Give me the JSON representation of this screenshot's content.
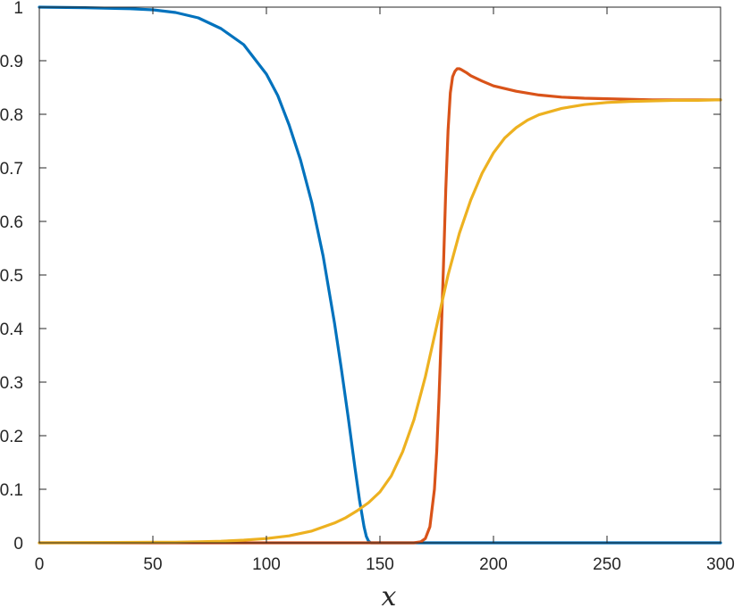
{
  "chart_data": {
    "type": "line",
    "title": "",
    "xlabel": "x",
    "ylabel": "",
    "xlim": [
      0,
      300
    ],
    "ylim": [
      0,
      1
    ],
    "xticks": [
      0,
      50,
      100,
      150,
      200,
      250,
      300
    ],
    "yticks": [
      0,
      0.1,
      0.2,
      0.3,
      0.4,
      0.5,
      0.6,
      0.7,
      0.8,
      0.9,
      1
    ],
    "xtick_labels": [
      "0",
      "50",
      "100",
      "150",
      "200",
      "250",
      "300"
    ],
    "ytick_labels": [
      "0",
      "0.1",
      "0.2",
      "0.3",
      "0.4",
      "0.5",
      "0.6",
      "0.7",
      "0.8",
      "0.9",
      "1"
    ],
    "grid": false,
    "legend": "none",
    "series": [
      {
        "color": "#0072BD",
        "x": [
          0,
          20,
          40,
          50,
          60,
          70,
          80,
          90,
          100,
          105,
          110,
          115,
          120,
          125,
          130,
          133,
          136,
          139,
          141,
          143,
          144,
          145,
          146,
          150,
          175,
          200,
          250,
          300
        ],
        "y": [
          1.0,
          0.999,
          0.997,
          0.995,
          0.99,
          0.98,
          0.96,
          0.93,
          0.875,
          0.835,
          0.78,
          0.715,
          0.635,
          0.535,
          0.41,
          0.325,
          0.235,
          0.14,
          0.08,
          0.03,
          0.012,
          0.003,
          0.0,
          0.0,
          0.0,
          0.0,
          0.0,
          0.0
        ]
      },
      {
        "color": "#D95319",
        "x": [
          0,
          50,
          100,
          150,
          160,
          165,
          168,
          170,
          172,
          174,
          175,
          176,
          177,
          178,
          179,
          180,
          181,
          182,
          183,
          184,
          185,
          186,
          188,
          190,
          195,
          200,
          210,
          220,
          230,
          240,
          250,
          260,
          270,
          280,
          290,
          300
        ],
        "y": [
          0.0,
          0.0,
          0.0,
          0.0,
          0.0,
          0.0,
          0.002,
          0.008,
          0.03,
          0.1,
          0.17,
          0.27,
          0.39,
          0.52,
          0.66,
          0.77,
          0.84,
          0.87,
          0.88,
          0.885,
          0.885,
          0.883,
          0.878,
          0.872,
          0.862,
          0.853,
          0.843,
          0.836,
          0.832,
          0.83,
          0.829,
          0.828,
          0.827,
          0.827,
          0.827,
          0.827
        ]
      },
      {
        "color": "#EDB120",
        "x": [
          0,
          50,
          60,
          70,
          80,
          90,
          100,
          110,
          120,
          130,
          135,
          140,
          145,
          150,
          155,
          160,
          165,
          170,
          175,
          180,
          185,
          190,
          195,
          200,
          205,
          210,
          215,
          220,
          230,
          240,
          250,
          260,
          270,
          280,
          290,
          300
        ],
        "y": [
          0.0,
          0.001,
          0.001,
          0.002,
          0.003,
          0.005,
          0.008,
          0.013,
          0.022,
          0.037,
          0.047,
          0.06,
          0.075,
          0.095,
          0.125,
          0.17,
          0.23,
          0.31,
          0.405,
          0.5,
          0.578,
          0.64,
          0.69,
          0.728,
          0.756,
          0.775,
          0.789,
          0.799,
          0.811,
          0.818,
          0.822,
          0.824,
          0.825,
          0.826,
          0.826,
          0.827
        ]
      }
    ]
  }
}
